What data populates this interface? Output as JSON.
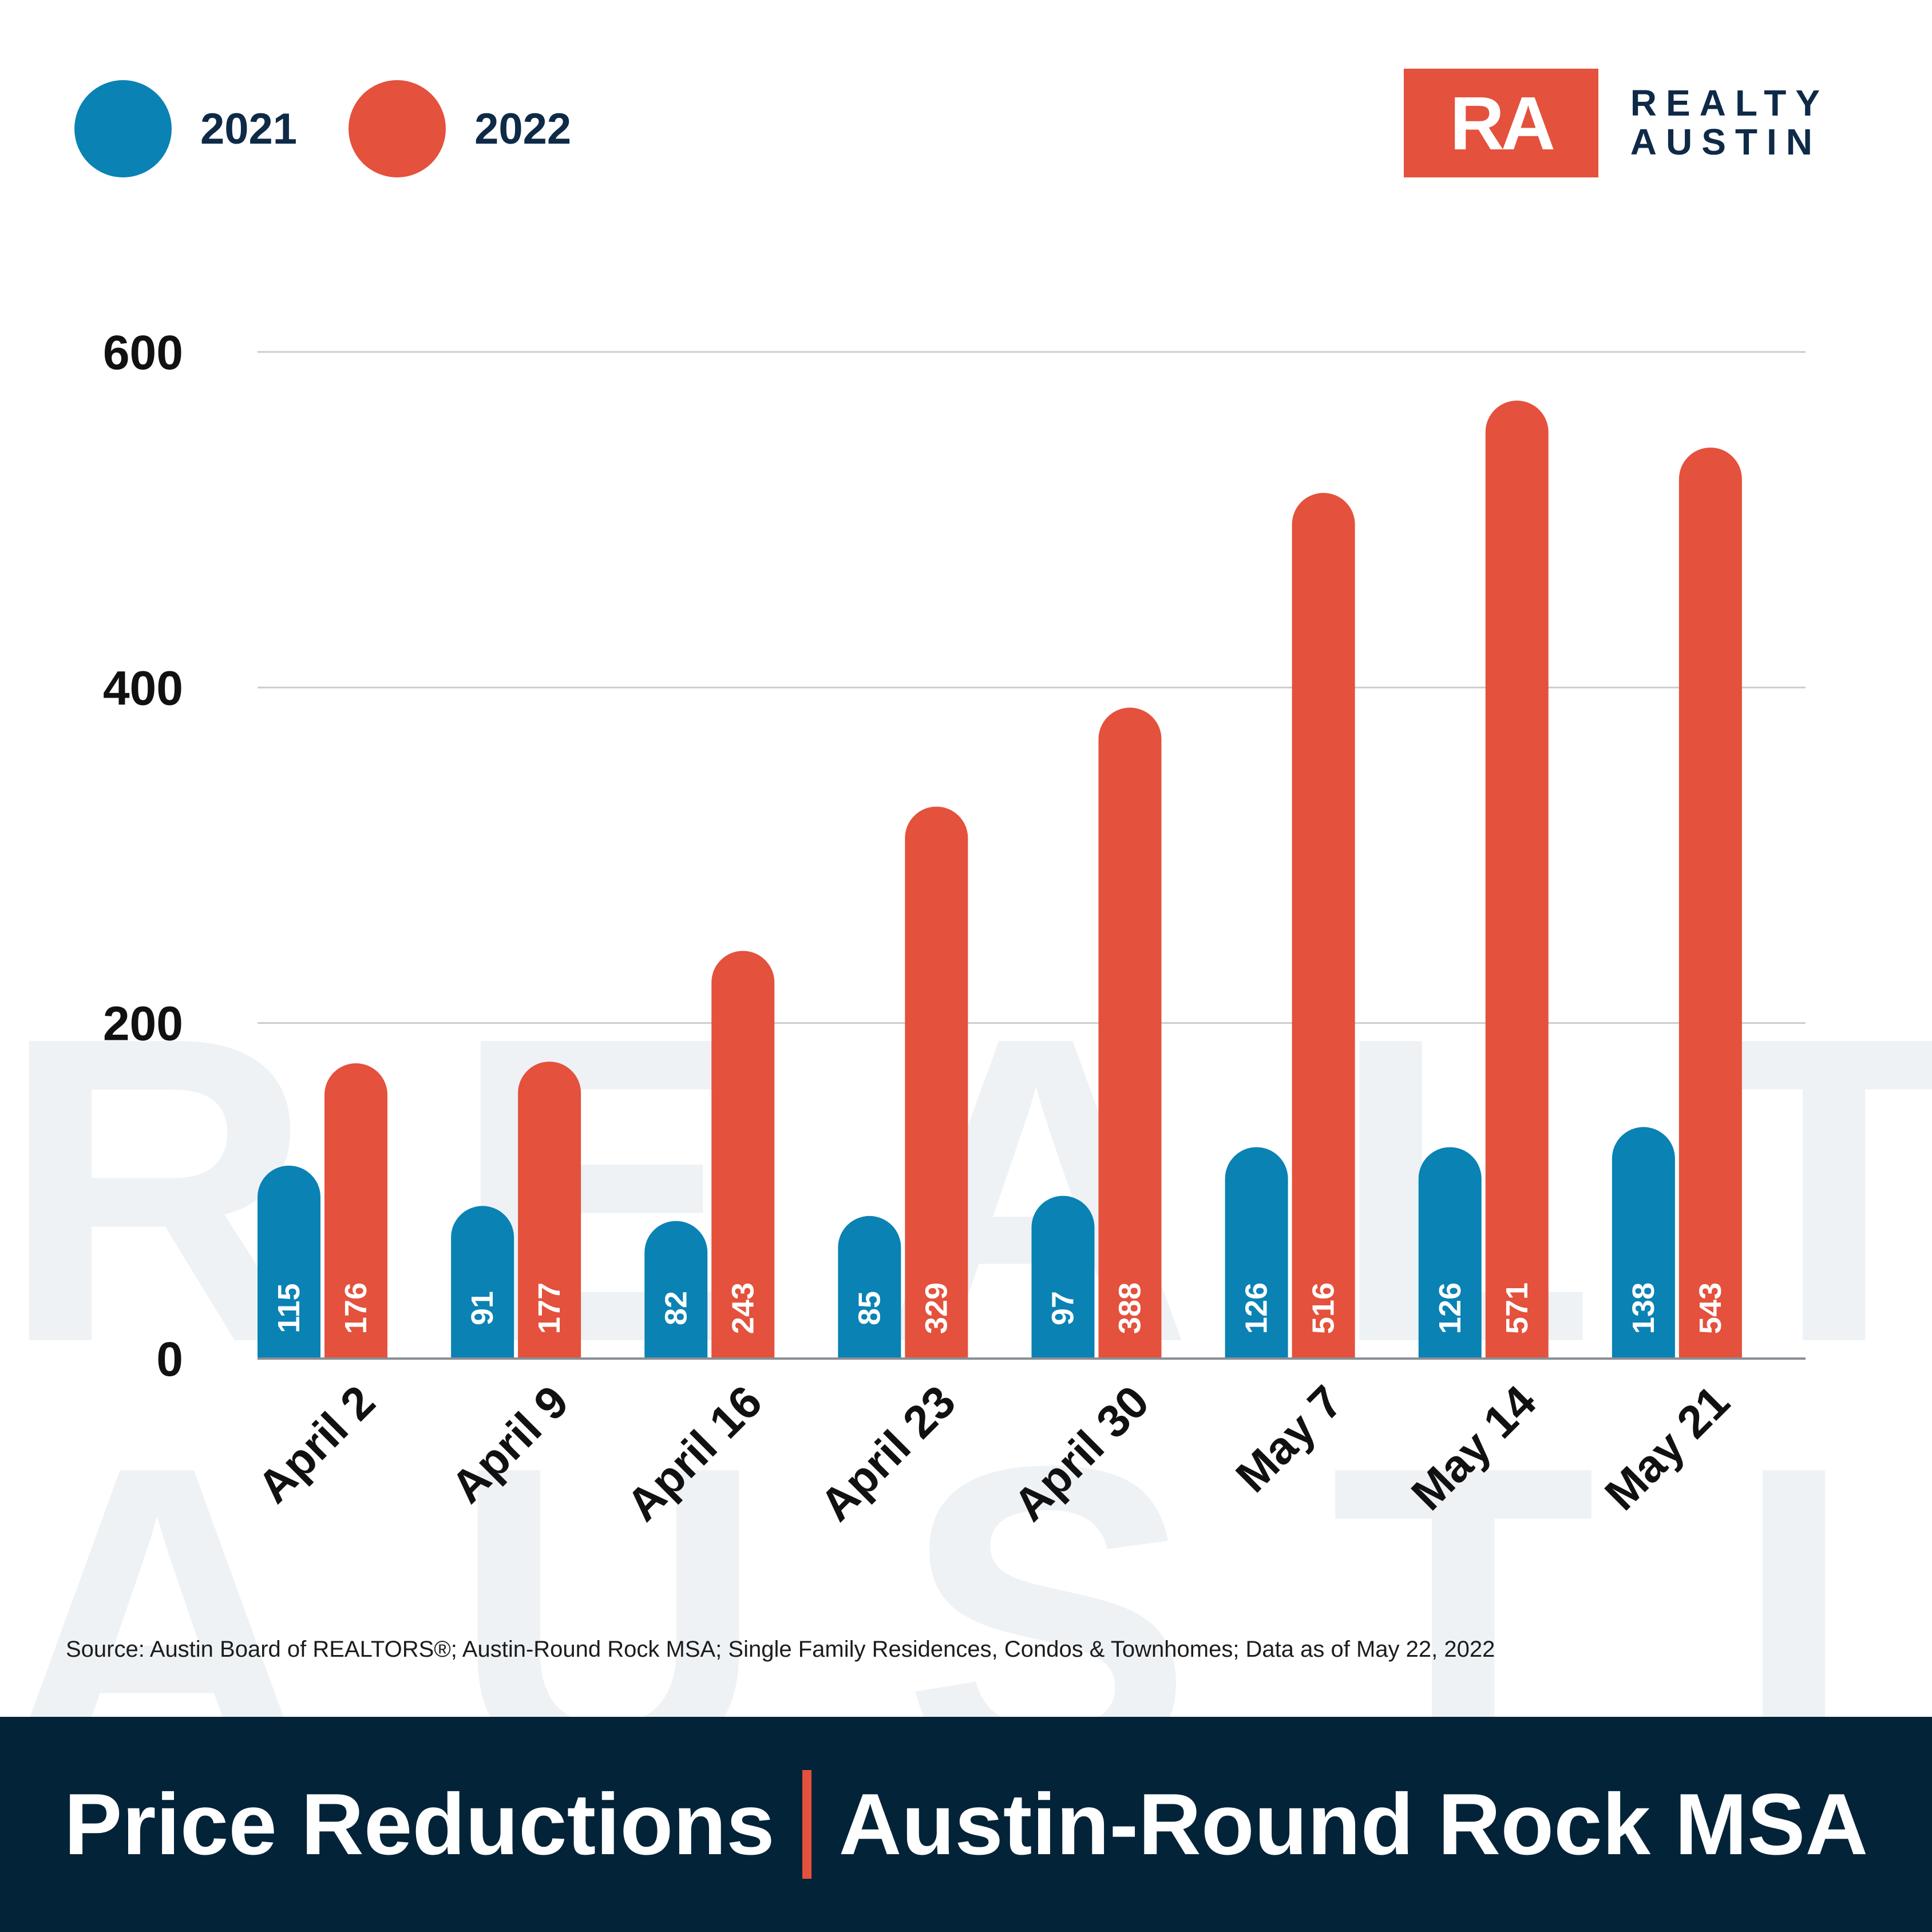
{
  "watermark": {
    "line1": "REALTY",
    "line2": "AUSTIN"
  },
  "legend": [
    {
      "label": "2021",
      "color": "#0a82b4"
    },
    {
      "label": "2022",
      "color": "#e4513c"
    }
  ],
  "logo": {
    "mark": "RA",
    "word1": "REALTY",
    "word2": "AUSTIN"
  },
  "source": "Source: Austin Board of REALTORS®; Austin-Round Rock MSA; Single Family Residences, Condos & Townhomes; Data as of May 22, 2022",
  "footer": {
    "title_left": "Price Reductions",
    "title_right": "Austin-Round Rock MSA"
  },
  "chart_data": {
    "type": "bar",
    "title": "",
    "xlabel": "",
    "ylabel": "",
    "ylim": [
      0,
      600
    ],
    "yticks": [
      0,
      200,
      400,
      600
    ],
    "grid": true,
    "legend_position": "top-left",
    "categories": [
      "April 2",
      "April 9",
      "April 16",
      "April 23",
      "April 30",
      "May 7",
      "May 14",
      "May 21"
    ],
    "series": [
      {
        "name": "2021",
        "color": "#0a82b4",
        "values": [
          115,
          91,
          82,
          85,
          97,
          126,
          126,
          138
        ]
      },
      {
        "name": "2022",
        "color": "#e4513c",
        "values": [
          176,
          177,
          243,
          329,
          388,
          516,
          571,
          543
        ]
      }
    ]
  }
}
